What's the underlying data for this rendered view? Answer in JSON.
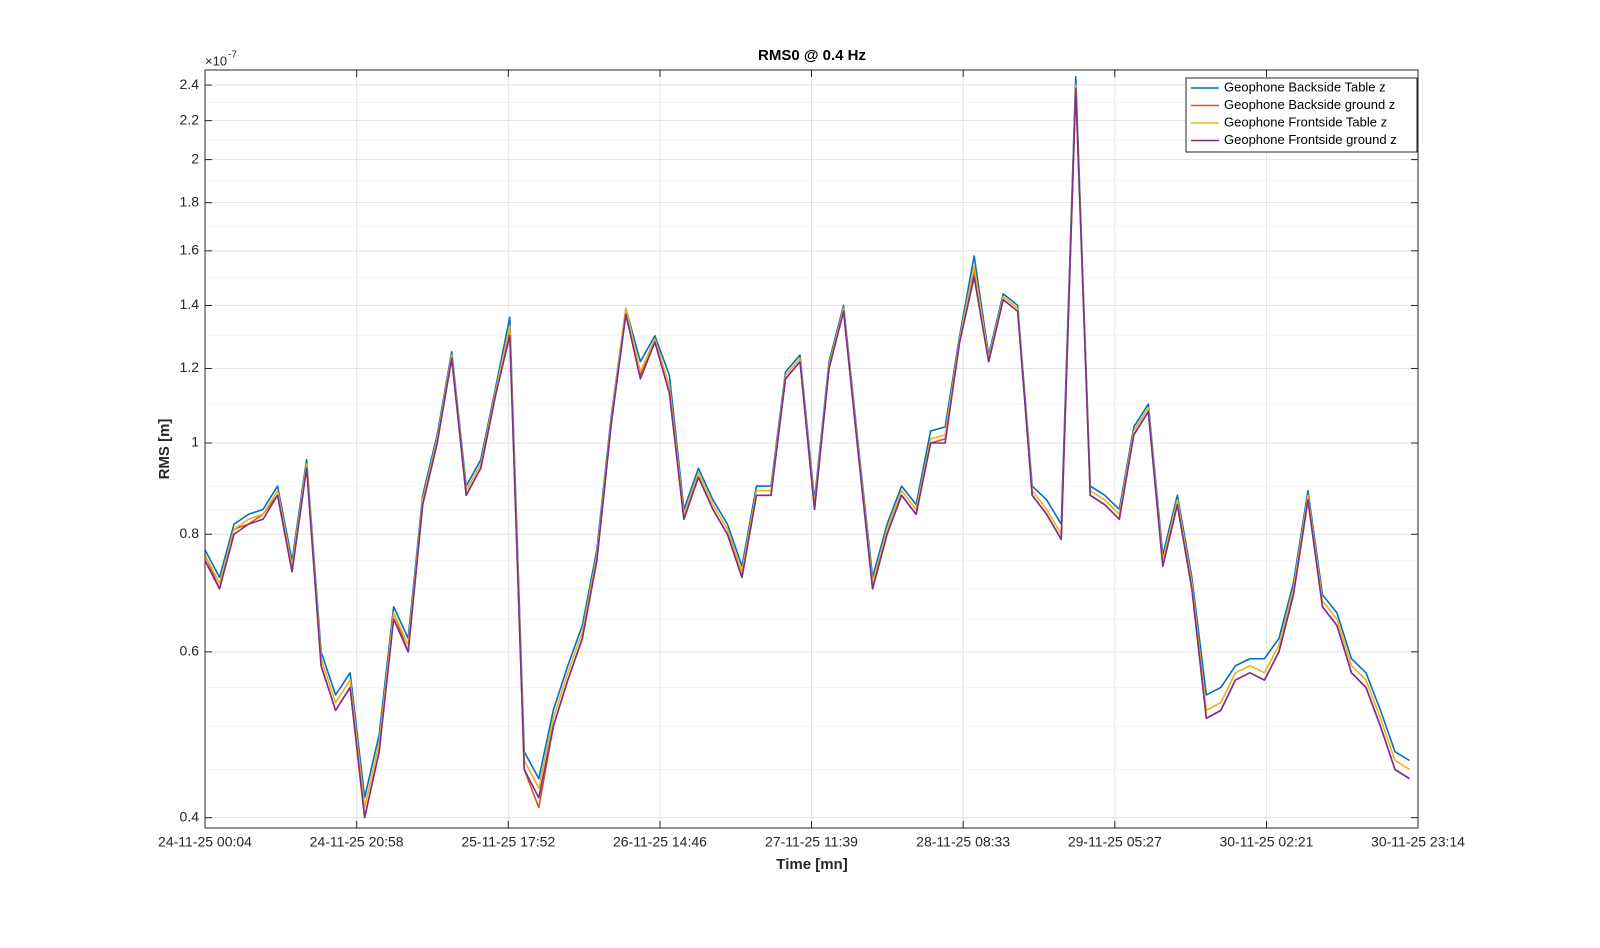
{
  "chart_data": {
    "type": "line",
    "title": "RMS0 @ 0.4 Hz",
    "xlabel": "Time [mn]",
    "ylabel": "RMS [m]",
    "y_exponent": {
      "base": "×10",
      "power": "-7"
    },
    "yscale": "log",
    "grid": true,
    "minor_grid": true,
    "legend_position": "northeast",
    "xlim": [
      "24-11-25 00:04",
      "30-11-25 23:14"
    ],
    "xticks": [
      "24-11-25 00:04",
      "24-11-25 20:58",
      "25-11-25 17:52",
      "26-11-25 14:46",
      "27-11-25 11:39",
      "28-11-25 08:33",
      "29-11-25 05:27",
      "30-11-25 02:21",
      "30-11-25 23:14"
    ],
    "ylim": [
      0.39,
      2.49
    ],
    "yticks": [
      0.4,
      0.6,
      0.8,
      1,
      1.2,
      1.4,
      1.6,
      1.8,
      2,
      2.2,
      2.4
    ],
    "yminor_ticks": [
      0.45,
      0.5,
      0.55,
      0.65,
      0.7,
      0.75,
      0.85,
      0.9,
      0.95,
      1.1,
      1.3,
      1.5,
      1.7,
      1.9,
      2.1,
      2.3
    ],
    "x": [
      "24-11-25 00:04",
      "24-11-25 02:04",
      "24-11-25 04:04",
      "24-11-25 06:04",
      "24-11-25 08:04",
      "24-11-25 10:04",
      "24-11-25 12:04",
      "24-11-25 14:04",
      "24-11-25 16:04",
      "24-11-25 18:04",
      "24-11-25 20:04",
      "24-11-25 22:04",
      "25-11-25 00:04",
      "25-11-25 02:04",
      "25-11-25 04:04",
      "25-11-25 06:04",
      "25-11-25 08:04",
      "25-11-25 10:04",
      "25-11-25 12:04",
      "25-11-25 14:04",
      "25-11-25 16:04",
      "25-11-25 18:04",
      "25-11-25 20:04",
      "25-11-25 22:04",
      "26-11-25 00:04",
      "26-11-25 02:04",
      "26-11-25 04:04",
      "26-11-25 06:04",
      "26-11-25 08:04",
      "26-11-25 10:04",
      "26-11-25 12:04",
      "26-11-25 14:04",
      "26-11-25 16:04",
      "26-11-25 18:04",
      "26-11-25 20:04",
      "26-11-25 22:04",
      "27-11-25 00:04",
      "27-11-25 02:04",
      "27-11-25 04:04",
      "27-11-25 06:04",
      "27-11-25 08:04",
      "27-11-25 10:04",
      "27-11-25 12:04",
      "27-11-25 14:04",
      "27-11-25 16:04",
      "27-11-25 18:04",
      "27-11-25 20:04",
      "27-11-25 22:04",
      "28-11-25 00:04",
      "28-11-25 02:04",
      "28-11-25 04:04",
      "28-11-25 06:04",
      "28-11-25 08:04",
      "28-11-25 10:04",
      "28-11-25 12:04",
      "28-11-25 14:04",
      "28-11-25 16:04",
      "28-11-25 18:04",
      "28-11-25 20:04",
      "28-11-25 22:04",
      "29-11-25 00:04",
      "29-11-25 02:04",
      "29-11-25 04:04",
      "29-11-25 06:04",
      "29-11-25 08:04",
      "29-11-25 10:04",
      "29-11-25 12:04",
      "29-11-25 14:04",
      "29-11-25 16:04",
      "29-11-25 18:04",
      "29-11-25 20:04",
      "29-11-25 22:04",
      "30-11-25 00:04",
      "30-11-25 02:04",
      "30-11-25 04:04",
      "30-11-25 06:04",
      "30-11-25 08:04",
      "30-11-25 10:04",
      "30-11-25 12:04",
      "30-11-25 14:04",
      "30-11-25 16:04",
      "30-11-25 18:04",
      "30-11-25 20:04",
      "30-11-25 22:04"
    ],
    "series": [
      {
        "name": "Geophone Backside Table z",
        "color": "#0072BD",
        "values": [
          0.77,
          0.72,
          0.82,
          0.84,
          0.85,
          0.9,
          0.75,
          0.96,
          0.6,
          0.54,
          0.57,
          0.42,
          0.49,
          0.67,
          0.62,
          0.88,
          1.02,
          1.25,
          0.9,
          0.96,
          1.14,
          1.36,
          0.47,
          0.44,
          0.52,
          0.58,
          0.64,
          0.77,
          1.07,
          1.39,
          1.22,
          1.3,
          1.18,
          0.85,
          0.94,
          0.87,
          0.82,
          0.74,
          0.9,
          0.9,
          1.19,
          1.24,
          0.87,
          1.22,
          1.4,
          1.0,
          0.72,
          0.82,
          0.9,
          0.86,
          1.03,
          1.04,
          1.3,
          1.58,
          1.24,
          1.44,
          1.4,
          0.9,
          0.87,
          0.82,
          2.45,
          0.9,
          0.88,
          0.85,
          1.04,
          1.1,
          0.76,
          0.88,
          0.72,
          0.54,
          0.55,
          0.58,
          0.59,
          0.59,
          0.62,
          0.71,
          0.89,
          0.69,
          0.66,
          0.59,
          0.57,
          0.52,
          0.47,
          0.46
        ]
      },
      {
        "name": "Geophone Backside ground z",
        "color": "#D95319",
        "values": [
          0.76,
          0.7,
          0.81,
          0.82,
          0.84,
          0.88,
          0.73,
          0.95,
          0.58,
          0.52,
          0.55,
          0.4,
          0.47,
          0.66,
          0.6,
          0.86,
          1.0,
          1.23,
          0.88,
          0.94,
          1.12,
          1.31,
          0.45,
          0.41,
          0.5,
          0.56,
          0.62,
          0.75,
          1.05,
          1.37,
          1.18,
          1.28,
          1.13,
          0.83,
          0.92,
          0.85,
          0.8,
          0.72,
          0.88,
          0.88,
          1.17,
          1.22,
          0.85,
          1.2,
          1.38,
          0.98,
          0.7,
          0.8,
          0.88,
          0.84,
          1.0,
          1.01,
          1.28,
          1.52,
          1.22,
          1.42,
          1.38,
          0.88,
          0.84,
          0.79,
          2.38,
          0.88,
          0.86,
          0.83,
          1.02,
          1.08,
          0.74,
          0.86,
          0.7,
          0.51,
          0.52,
          0.56,
          0.57,
          0.56,
          0.6,
          0.69,
          0.87,
          0.67,
          0.64,
          0.57,
          0.55,
          0.5,
          0.45,
          0.44
        ]
      },
      {
        "name": "Geophone Frontside Table z",
        "color": "#EDB120",
        "values": [
          0.76,
          0.71,
          0.81,
          0.83,
          0.84,
          0.89,
          0.74,
          0.95,
          0.59,
          0.53,
          0.56,
          0.41,
          0.48,
          0.66,
          0.61,
          0.87,
          1.01,
          1.24,
          0.89,
          0.95,
          1.13,
          1.33,
          0.46,
          0.43,
          0.51,
          0.57,
          0.63,
          0.76,
          1.06,
          1.39,
          1.19,
          1.29,
          1.15,
          0.84,
          0.93,
          0.86,
          0.81,
          0.73,
          0.89,
          0.89,
          1.18,
          1.23,
          0.86,
          1.21,
          1.39,
          0.99,
          0.71,
          0.81,
          0.89,
          0.85,
          1.01,
          1.02,
          1.29,
          1.54,
          1.23,
          1.43,
          1.39,
          0.89,
          0.85,
          0.8,
          2.4,
          0.89,
          0.87,
          0.84,
          1.03,
          1.09,
          0.75,
          0.87,
          0.71,
          0.52,
          0.53,
          0.57,
          0.58,
          0.57,
          0.61,
          0.7,
          0.88,
          0.68,
          0.65,
          0.58,
          0.56,
          0.51,
          0.46,
          0.45
        ]
      },
      {
        "name": "Geophone Frontside ground z",
        "color": "#7E2F8E",
        "values": [
          0.75,
          0.7,
          0.8,
          0.82,
          0.83,
          0.88,
          0.73,
          0.94,
          0.58,
          0.52,
          0.55,
          0.4,
          0.47,
          0.65,
          0.6,
          0.86,
          1.0,
          1.23,
          0.88,
          0.94,
          1.12,
          1.3,
          0.45,
          0.42,
          0.5,
          0.56,
          0.62,
          0.75,
          1.05,
          1.37,
          1.17,
          1.28,
          1.13,
          0.83,
          0.92,
          0.85,
          0.8,
          0.72,
          0.88,
          0.88,
          1.17,
          1.22,
          0.85,
          1.2,
          1.38,
          0.98,
          0.7,
          0.8,
          0.88,
          0.84,
          1.0,
          1.0,
          1.28,
          1.5,
          1.22,
          1.42,
          1.38,
          0.88,
          0.84,
          0.79,
          2.38,
          0.88,
          0.86,
          0.83,
          1.02,
          1.08,
          0.74,
          0.86,
          0.7,
          0.51,
          0.52,
          0.56,
          0.57,
          0.56,
          0.6,
          0.69,
          0.87,
          0.67,
          0.64,
          0.57,
          0.55,
          0.5,
          0.45,
          0.44
        ]
      }
    ]
  }
}
